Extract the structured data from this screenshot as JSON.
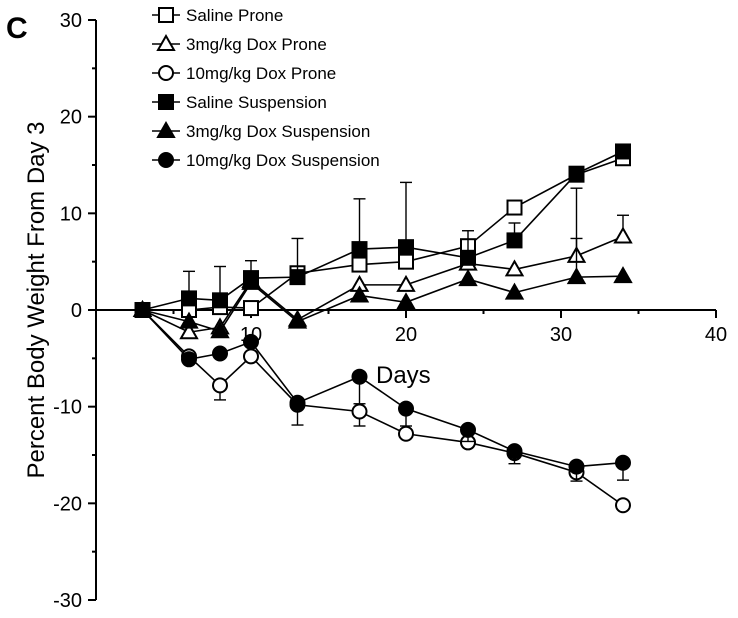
{
  "panel_label": "C",
  "chart_data": {
    "type": "line",
    "title": "",
    "xlabel": "Days",
    "ylabel": "Percent Body Weight From Day 3",
    "xlim": [
      0,
      40
    ],
    "ylim": [
      -30,
      30
    ],
    "xticks": [
      10,
      20,
      30,
      40
    ],
    "yticks": [
      -30,
      -20,
      -10,
      0,
      10,
      20,
      30
    ],
    "grid": false,
    "legend_position": "top-left",
    "series": [
      {
        "name": "Saline Prone",
        "marker": "square-open",
        "x": [
          3,
          6,
          8,
          10,
          13,
          17,
          20,
          24,
          27,
          31,
          34
        ],
        "y": [
          0,
          0,
          0.3,
          0.2,
          3.8,
          4.7,
          5.0,
          6.6,
          10.6,
          14.0,
          15.7
        ],
        "err": [
          0,
          0,
          0,
          0,
          0,
          6.8,
          8.2,
          0,
          0,
          0,
          0
        ]
      },
      {
        "name": "3mg/kg Dox Prone",
        "marker": "triangle-open",
        "x": [
          3,
          6,
          8,
          10,
          13,
          17,
          20,
          24,
          27,
          31,
          34
        ],
        "y": [
          0,
          -2.3,
          -1.8,
          3.0,
          -1.0,
          2.6,
          2.6,
          4.8,
          4.2,
          5.6,
          7.6
        ],
        "err": [
          0,
          0,
          0,
          0,
          0,
          0,
          0,
          0,
          0,
          1.8,
          2.2
        ]
      },
      {
        "name": "10mg/kg Dox Prone",
        "marker": "circle-open",
        "x": [
          3,
          6,
          8,
          10,
          13,
          17,
          20,
          24,
          27,
          31,
          34
        ],
        "y": [
          0,
          -4.8,
          -7.8,
          -4.8,
          -9.8,
          -10.5,
          -12.8,
          -13.7,
          -14.8,
          -16.8,
          -20.2
        ],
        "err": [
          0,
          0,
          1.5,
          0,
          0,
          1.5,
          0,
          0,
          0,
          0,
          0
        ]
      },
      {
        "name": "Saline Suspension",
        "marker": "square-filled",
        "x": [
          3,
          6,
          8,
          10,
          13,
          17,
          20,
          24,
          27,
          31,
          34
        ],
        "y": [
          0,
          1.2,
          1.0,
          3.3,
          3.4,
          6.3,
          6.5,
          5.4,
          7.2,
          14.1,
          16.4
        ],
        "err": [
          0,
          2.8,
          3.5,
          1.8,
          4.0,
          0,
          0,
          2.8,
          1.8,
          0,
          0
        ]
      },
      {
        "name": "3mg/kg Dox Suspension",
        "marker": "triangle-filled",
        "x": [
          3,
          6,
          8,
          10,
          13,
          17,
          20,
          24,
          27,
          31,
          34
        ],
        "y": [
          0,
          -1.2,
          -2.2,
          2.8,
          -1.2,
          1.5,
          0.8,
          3.2,
          1.8,
          3.4,
          3.5
        ],
        "err": [
          0,
          0,
          0,
          0,
          0,
          0,
          0,
          0,
          0,
          9.2,
          0
        ]
      },
      {
        "name": "10mg/kg Dox Suspension",
        "marker": "circle-filled",
        "x": [
          3,
          6,
          8,
          10,
          13,
          17,
          20,
          24,
          27,
          31,
          34
        ],
        "y": [
          0,
          -5.1,
          -4.5,
          -3.3,
          -9.6,
          -6.9,
          -10.2,
          -12.4,
          -14.6,
          -16.2,
          -15.8
        ],
        "err": [
          0,
          0,
          0,
          0,
          2.3,
          2.8,
          1.8,
          1.2,
          1.3,
          1.5,
          1.8
        ]
      }
    ]
  }
}
